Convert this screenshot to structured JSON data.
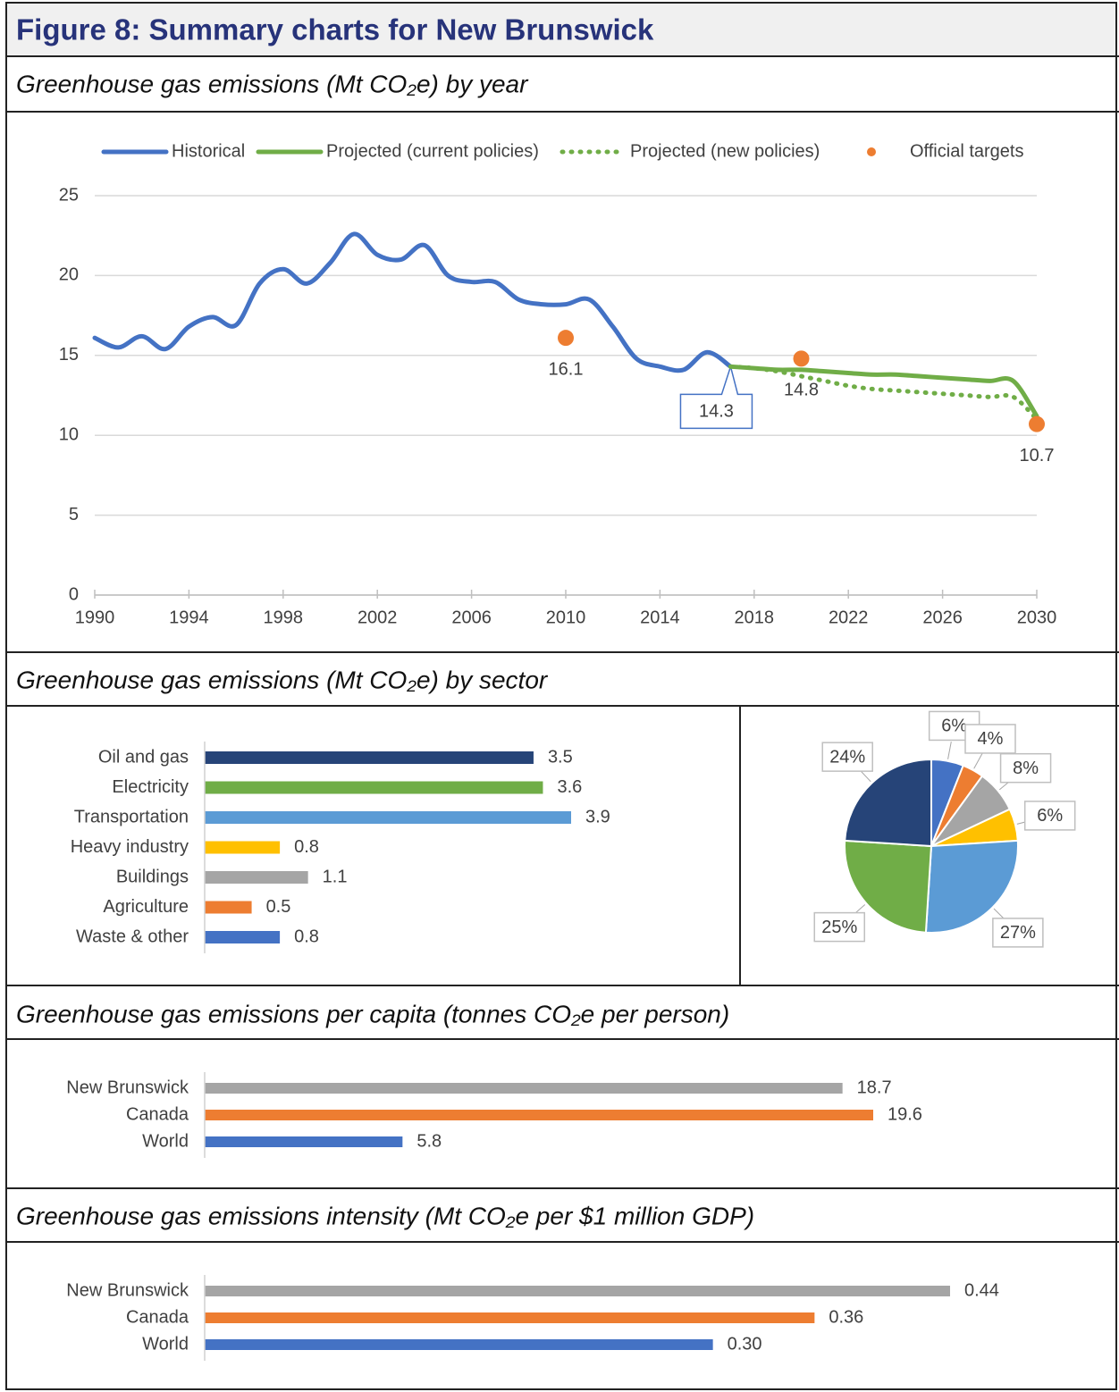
{
  "title": "Figure 8: Summary charts for New Brunswick",
  "chart_data": [
    {
      "type": "line",
      "title": "Greenhouse gas emissions (Mt CO₂e) by year",
      "x": [
        1990,
        1991,
        1992,
        1993,
        1994,
        1995,
        1996,
        1997,
        1998,
        1999,
        2000,
        2001,
        2002,
        2003,
        2004,
        2005,
        2006,
        2007,
        2008,
        2009,
        2010,
        2011,
        2012,
        2013,
        2014,
        2015,
        2016,
        2017,
        2018,
        2019,
        2020,
        2021,
        2022,
        2023,
        2024,
        2025,
        2026,
        2027,
        2028,
        2029,
        2030
      ],
      "series": [
        {
          "name": "Historical",
          "color": "#4472c4",
          "values": [
            16.1,
            15.5,
            16.2,
            15.4,
            16.8,
            17.4,
            16.9,
            19.5,
            20.4,
            19.5,
            20.8,
            22.6,
            21.3,
            21.0,
            21.9,
            20.0,
            19.6,
            19.6,
            18.5,
            18.2,
            18.2,
            18.5,
            16.8,
            14.8,
            14.3,
            14.1,
            15.2,
            14.3,
            null,
            null,
            null,
            null,
            null,
            null,
            null,
            null,
            null,
            null,
            null,
            null,
            null
          ]
        },
        {
          "name": "Projected (current policies)",
          "color": "#70ad47",
          "values": [
            null,
            null,
            null,
            null,
            null,
            null,
            null,
            null,
            null,
            null,
            null,
            null,
            null,
            null,
            null,
            null,
            null,
            null,
            null,
            null,
            null,
            null,
            null,
            null,
            null,
            null,
            null,
            14.3,
            14.2,
            14.1,
            14.1,
            14.0,
            13.9,
            13.8,
            13.8,
            13.7,
            13.6,
            13.5,
            13.4,
            13.4,
            11.2
          ]
        },
        {
          "name": "Projected (new policies)",
          "color": "#70ad47",
          "dash": "dotted",
          "values": [
            null,
            null,
            null,
            null,
            null,
            null,
            null,
            null,
            null,
            null,
            null,
            null,
            null,
            null,
            null,
            null,
            null,
            null,
            null,
            null,
            null,
            null,
            null,
            null,
            null,
            null,
            null,
            14.3,
            14.2,
            14.0,
            13.7,
            13.4,
            13.1,
            12.9,
            12.8,
            12.7,
            12.6,
            12.5,
            12.4,
            12.4,
            11.0
          ]
        },
        {
          "name": "Official targets",
          "color": "#ed7d31",
          "mode": "markers",
          "values": [
            null,
            null,
            null,
            null,
            null,
            null,
            null,
            null,
            null,
            null,
            null,
            null,
            null,
            null,
            null,
            null,
            null,
            null,
            null,
            null,
            16.1,
            null,
            null,
            null,
            null,
            null,
            null,
            null,
            null,
            null,
            14.8,
            null,
            null,
            null,
            null,
            null,
            null,
            null,
            null,
            null,
            10.7
          ]
        }
      ],
      "xlim": [
        1990,
        2030
      ],
      "xticks": [
        1990,
        1994,
        1998,
        2002,
        2006,
        2010,
        2014,
        2018,
        2022,
        2026,
        2030
      ],
      "ylim": [
        0,
        25
      ],
      "yticks": [
        0,
        5,
        10,
        15,
        20,
        25
      ],
      "grid": true,
      "legend": "top"
    },
    {
      "type": "hbar",
      "title": "Greenhouse gas emissions (Mt CO₂e) by sector",
      "categories": [
        "Oil and gas",
        "Electricity",
        "Transportation",
        "Heavy industry",
        "Buildings",
        "Agriculture",
        "Waste & other"
      ],
      "values": [
        3.5,
        3.6,
        3.9,
        0.8,
        1.1,
        0.5,
        0.8
      ],
      "colors": [
        "#264478",
        "#70ad47",
        "#5b9bd5",
        "#ffc000",
        "#a5a5a5",
        "#ed7d31",
        "#4472c4"
      ]
    },
    {
      "type": "pie",
      "values": [
        6,
        4,
        8,
        6,
        27,
        25,
        24
      ],
      "value_labels": [
        "6%",
        "4%",
        "8%",
        "6%",
        "27%",
        "25%",
        "24%"
      ],
      "colors": [
        "#4472c4",
        "#ed7d31",
        "#a5a5a5",
        "#ffc000",
        "#5b9bd5",
        "#70ad47",
        "#264478"
      ]
    },
    {
      "type": "hbar",
      "title": "Greenhouse gas emissions per capita (tonnes CO₂e per person)",
      "categories": [
        "New Brunswick",
        "Canada",
        "World"
      ],
      "values": [
        18.7,
        19.6,
        5.8
      ],
      "colors": [
        "#a5a5a5",
        "#ed7d31",
        "#4472c4"
      ]
    },
    {
      "type": "hbar",
      "title": "Greenhouse gas emissions intensity (Mt CO₂e per $1 million GDP)",
      "categories": [
        "New Brunswick",
        "Canada",
        "World"
      ],
      "values": [
        0.44,
        0.36,
        0.3
      ],
      "value_labels": [
        "0.44",
        "0.36",
        "0.30"
      ],
      "colors": [
        "#a5a5a5",
        "#ed7d31",
        "#4472c4"
      ]
    }
  ]
}
